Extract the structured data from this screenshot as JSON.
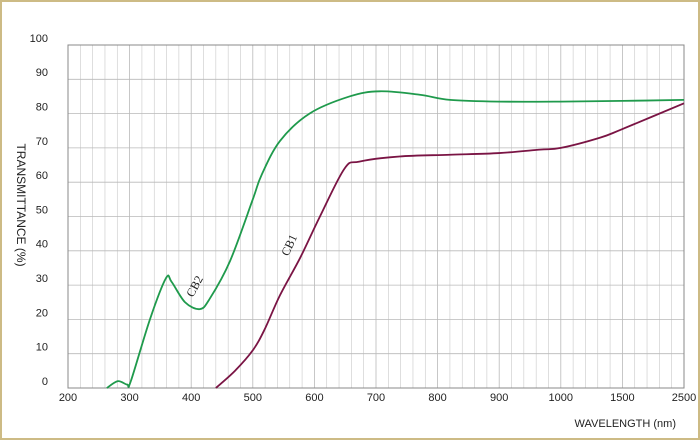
{
  "chart_data": {
    "type": "line",
    "y_label": "TRANSMITTANCE   (%)",
    "x_label": "WAVELENGTH (nm)",
    "xlim": [
      200,
      2500
    ],
    "xticks": [
      200,
      300,
      400,
      500,
      600,
      700,
      800,
      900,
      1000,
      1500,
      2500
    ],
    "ylim": [
      0,
      100
    ],
    "yticks": [
      0,
      10,
      20,
      30,
      40,
      50,
      60,
      70,
      80,
      90,
      100
    ],
    "grid": true,
    "series": [
      {
        "name": "CB2",
        "color": "#1f9a4c",
        "x": [
          263,
          281,
          296,
          302,
          333,
          359,
          368,
          390,
          414,
          430,
          463,
          500,
          514,
          544,
          592,
          657,
          706,
          771,
          820,
          900,
          1000,
          1500,
          2500
        ],
        "values": [
          0,
          2,
          1,
          2,
          20,
          32,
          31,
          25,
          23,
          26,
          37,
          55,
          62,
          72,
          80,
          85,
          86.5,
          85.5,
          84,
          83.5,
          83.5,
          83.7,
          84
        ]
      },
      {
        "name": "CB1",
        "color": "#7a1444",
        "x": [
          440,
          471,
          500,
          519,
          544,
          577,
          609,
          649,
          673,
          738,
          820,
          900,
          966,
          1000,
          1320,
          1500,
          2500
        ],
        "values": [
          0,
          5,
          11,
          17,
          27,
          38,
          50,
          64,
          66,
          67.5,
          68,
          68.5,
          69.5,
          70,
          73,
          75.5,
          83
        ]
      }
    ]
  }
}
